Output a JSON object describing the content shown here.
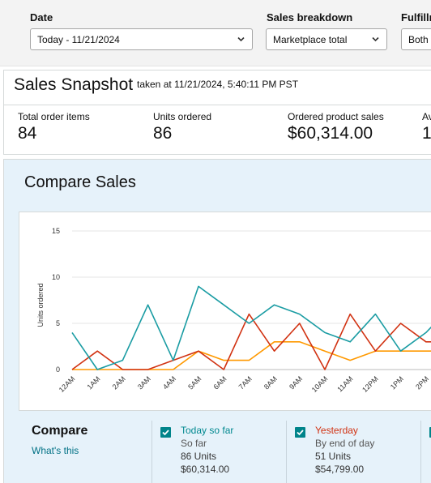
{
  "filters": {
    "date": {
      "label": "Date",
      "value": "Today - 11/21/2024"
    },
    "breakdown": {
      "label": "Sales breakdown",
      "value": "Marketplace total"
    },
    "fulfillment": {
      "label": "Fulfillm",
      "value": "Both (A"
    }
  },
  "snapshot": {
    "title": "Sales Snapshot",
    "taken_at": "taken at 11/21/2024, 5:40:11 PM PST",
    "metrics": [
      {
        "label": "Total order items",
        "value": "84"
      },
      {
        "label": "Units ordered",
        "value": "86"
      },
      {
        "label": "Ordered product sales",
        "value": "$60,314.00"
      },
      {
        "label": "Av",
        "value": "1"
      }
    ]
  },
  "compare": {
    "title": "Compare Sales",
    "legend_title": "Compare",
    "whats_this": "What's this",
    "items": [
      {
        "name": "Today so far",
        "sub": "So far",
        "units": "86 Units",
        "sales": "$60,314.00",
        "color": "#00888f"
      },
      {
        "name": "Yesterday",
        "sub": "By end of day",
        "units": "51 Units",
        "sales": "$54,799.00",
        "color": "#d13212"
      }
    ]
  },
  "chart_data": {
    "type": "line",
    "ylabel": "Units ordered",
    "ylim": [
      0,
      15
    ],
    "yticks": [
      "0",
      "5",
      "10",
      "15"
    ],
    "categories": [
      "12AM",
      "1AM",
      "2AM",
      "3AM",
      "4AM",
      "5AM",
      "6AM",
      "7AM",
      "8AM",
      "9AM",
      "10AM",
      "11AM",
      "12PM",
      "1PM",
      "2PM"
    ],
    "series": [
      {
        "color": "#1a9ca3",
        "x": [
          0,
          1,
          2,
          3,
          4,
          5,
          6,
          7,
          8,
          9,
          10,
          11,
          12,
          13,
          14,
          14.35
        ],
        "values": [
          4,
          0,
          1,
          7,
          1,
          9,
          7,
          5,
          7,
          6,
          4,
          3,
          6,
          2,
          4,
          5
        ]
      },
      {
        "color": "#d13212",
        "x": [
          0,
          1,
          2,
          3,
          4,
          5,
          6,
          7,
          8,
          9,
          10,
          11,
          12,
          13,
          14,
          14.35
        ],
        "values": [
          0,
          2,
          0,
          0,
          1,
          2,
          0,
          6,
          2,
          5,
          0,
          6,
          2,
          5,
          3,
          3
        ]
      },
      {
        "color": "#ff9900",
        "x": [
          0,
          1,
          2,
          3,
          4,
          5,
          6,
          7,
          8,
          9,
          10,
          11,
          12,
          13,
          14,
          14.35
        ],
        "values": [
          0,
          0,
          0,
          0,
          0,
          2,
          1,
          1,
          3,
          3,
          2,
          1,
          2,
          2,
          2,
          2
        ]
      }
    ]
  }
}
